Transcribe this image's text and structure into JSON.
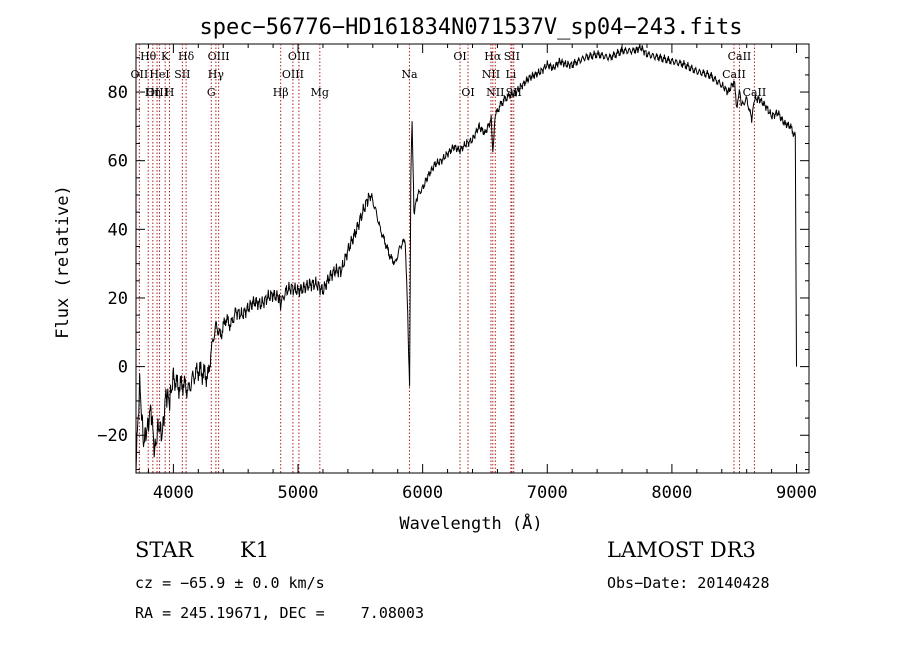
{
  "chart_data": {
    "type": "line",
    "title": "spec−56776−HD161834N071537V_sp04−243.fits",
    "xlabel": "Wavelength (Å)",
    "ylabel": "Flux (relative)",
    "xlim": [
      3700,
      9100
    ],
    "ylim": [
      -31,
      94
    ],
    "xticks": [
      4000,
      5000,
      6000,
      7000,
      8000,
      9000
    ],
    "yticks": [
      -20,
      0,
      20,
      40,
      60,
      80
    ],
    "grid": false,
    "series": [
      {
        "color": "#000000",
        "x": [
          3700,
          3730,
          3760,
          3790,
          3820,
          3850,
          3880,
          3910,
          3940,
          3970,
          4000,
          4040,
          4080,
          4120,
          4160,
          4200,
          4240,
          4280,
          4300,
          4320,
          4340,
          4380,
          4420,
          4460,
          4500,
          4550,
          4600,
          4650,
          4700,
          4750,
          4800,
          4850,
          4860,
          4900,
          4950,
          5000,
          5050,
          5100,
          5150,
          5200,
          5250,
          5300,
          5350,
          5400,
          5450,
          5500,
          5550,
          5580,
          5620,
          5660,
          5700,
          5740,
          5780,
          5820,
          5860,
          5880,
          5895,
          5905,
          5915,
          5930,
          5960,
          6000,
          6050,
          6100,
          6150,
          6200,
          6250,
          6300,
          6350,
          6400,
          6450,
          6500,
          6550,
          6563,
          6580,
          6620,
          6660,
          6700,
          6750,
          6800,
          6850,
          6900,
          6950,
          7000,
          7050,
          7100,
          7150,
          7200,
          7300,
          7400,
          7500,
          7600,
          7700,
          7750,
          7800,
          7900,
          8000,
          8100,
          8200,
          8300,
          8400,
          8450,
          8500,
          8520,
          8545,
          8560,
          8600,
          8640,
          8662,
          8700,
          8750,
          8800,
          8850,
          8900,
          8950,
          8990,
          9000
        ],
        "y": [
          -28,
          -5,
          -22,
          -18,
          -12,
          -25,
          -17,
          -20,
          -8,
          -10,
          -3,
          -6,
          -5,
          -7,
          -3,
          -1,
          -2,
          -3,
          4,
          8,
          12,
          9,
          14,
          12,
          16,
          15,
          17,
          19,
          18,
          20,
          21,
          20,
          18,
          22,
          23,
          22,
          23,
          24,
          24,
          22,
          26,
          28,
          28,
          34,
          38,
          43,
          48,
          50,
          46,
          40,
          36,
          32,
          30,
          35,
          37,
          15,
          -6,
          55,
          72,
          45,
          50,
          52,
          56,
          59,
          60,
          62,
          64,
          63,
          65,
          66,
          70,
          68,
          72,
          62,
          73,
          76,
          78,
          79,
          80,
          82,
          84,
          85,
          86,
          88,
          87,
          89,
          88,
          88,
          90,
          91,
          90,
          92,
          92,
          93,
          91,
          90,
          89,
          88,
          86,
          85,
          82,
          80,
          83,
          76,
          80,
          76,
          78,
          72,
          78,
          78,
          76,
          73,
          74,
          71,
          70,
          67,
          0
        ]
      }
    ],
    "line_markers": [
      {
        "label": "Hθ",
        "x": 3798,
        "row": 1
      },
      {
        "label": "OII",
        "x": 3727,
        "row": 2
      },
      {
        "label": "OIII",
        "x": 3869,
        "row": 3
      },
      {
        "label": "Hη",
        "x": 3835,
        "row": 3
      },
      {
        "label": "HeI",
        "x": 3889,
        "row": 2
      },
      {
        "label": "K",
        "x": 3934,
        "row": 1
      },
      {
        "label": "H",
        "x": 3969,
        "row": 3
      },
      {
        "label": "SII",
        "x": 4072,
        "row": 2
      },
      {
        "label": "Hδ",
        "x": 4102,
        "row": 1
      },
      {
        "label": "OIII",
        "x": 4363,
        "row": 1
      },
      {
        "label": "Hγ",
        "x": 4341,
        "row": 2
      },
      {
        "label": "G",
        "x": 4304,
        "row": 3
      },
      {
        "label": "OIII",
        "x": 5007,
        "row": 1
      },
      {
        "label": "OIII",
        "x": 4959,
        "row": 2
      },
      {
        "label": "Hβ",
        "x": 4861,
        "row": 3
      },
      {
        "label": "Mg",
        "x": 5175,
        "row": 3
      },
      {
        "label": "Na",
        "x": 5894,
        "row": 2
      },
      {
        "label": "OI",
        "x": 6300,
        "row": 1
      },
      {
        "label": "OI",
        "x": 6364,
        "row": 3
      },
      {
        "label": "Hα",
        "x": 6563,
        "row": 1
      },
      {
        "label": "SII",
        "x": 6716,
        "row": 1
      },
      {
        "label": "NII",
        "x": 6548,
        "row": 2
      },
      {
        "label": "Li",
        "x": 6708,
        "row": 2
      },
      {
        "label": "NII",
        "x": 6583,
        "row": 3
      },
      {
        "label": "SII",
        "x": 6731,
        "row": 3
      },
      {
        "label": "CaII",
        "x": 8542,
        "row": 1
      },
      {
        "label": "CaII",
        "x": 8498,
        "row": 2
      },
      {
        "label": "CaII",
        "x": 8662,
        "row": 3
      }
    ]
  },
  "info": {
    "object_class": "STAR",
    "subclass": "K1",
    "survey": "LAMOST DR3",
    "redshift": "cz = −65.9 ± 0.0 km/s",
    "obs_date": "Obs−Date: 20140428",
    "coords": "RA = 245.19671, DEC =    7.08003"
  }
}
